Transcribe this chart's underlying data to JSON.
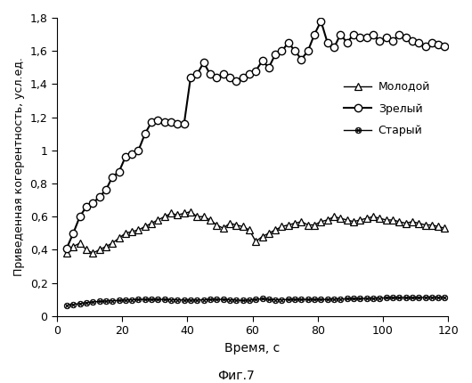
{
  "xlabel": "Время, с",
  "ylabel": "Приведенная когерентность, усл.ед.",
  "caption": "Фиг.7",
  "xlim": [
    0,
    120
  ],
  "ylim": [
    0,
    1.8
  ],
  "yticks": [
    0,
    0.2,
    0.4,
    0.6,
    0.8,
    1.0,
    1.2,
    1.4,
    1.6,
    1.8
  ],
  "xticks": [
    0,
    20,
    40,
    60,
    80,
    100,
    120
  ],
  "legend": [
    "Молодой",
    "Зрелый",
    "Старый"
  ],
  "molodoy_x": [
    3,
    5,
    7,
    9,
    11,
    13,
    15,
    17,
    19,
    21,
    23,
    25,
    27,
    29,
    31,
    33,
    35,
    37,
    39,
    41,
    43,
    45,
    47,
    49,
    51,
    53,
    55,
    57,
    59,
    61,
    63,
    65,
    67,
    69,
    71,
    73,
    75,
    77,
    79,
    81,
    83,
    85,
    87,
    89,
    91,
    93,
    95,
    97,
    99,
    101,
    103,
    105,
    107,
    109,
    111,
    113,
    115,
    117,
    119
  ],
  "molodoy_y": [
    0.38,
    0.42,
    0.44,
    0.4,
    0.38,
    0.4,
    0.42,
    0.44,
    0.47,
    0.5,
    0.51,
    0.52,
    0.54,
    0.56,
    0.58,
    0.6,
    0.62,
    0.61,
    0.62,
    0.63,
    0.6,
    0.6,
    0.58,
    0.55,
    0.53,
    0.56,
    0.55,
    0.54,
    0.52,
    0.45,
    0.48,
    0.5,
    0.52,
    0.54,
    0.55,
    0.56,
    0.57,
    0.55,
    0.55,
    0.57,
    0.58,
    0.6,
    0.59,
    0.58,
    0.57,
    0.58,
    0.59,
    0.6,
    0.59,
    0.58,
    0.58,
    0.57,
    0.56,
    0.57,
    0.56,
    0.55,
    0.55,
    0.54,
    0.53
  ],
  "zrelyy_x": [
    3,
    5,
    7,
    9,
    11,
    13,
    15,
    17,
    19,
    21,
    23,
    25,
    27,
    29,
    31,
    33,
    35,
    37,
    39,
    41,
    43,
    45,
    47,
    49,
    51,
    53,
    55,
    57,
    59,
    61,
    63,
    65,
    67,
    69,
    71,
    73,
    75,
    77,
    79,
    81,
    83,
    85,
    87,
    89,
    91,
    93,
    95,
    97,
    99,
    101,
    103,
    105,
    107,
    109,
    111,
    113,
    115,
    117,
    119
  ],
  "zrelyy_y": [
    0.41,
    0.5,
    0.6,
    0.66,
    0.68,
    0.72,
    0.76,
    0.84,
    0.87,
    0.96,
    0.98,
    1.0,
    1.1,
    1.17,
    1.18,
    1.17,
    1.17,
    1.16,
    1.16,
    1.44,
    1.46,
    1.53,
    1.46,
    1.44,
    1.46,
    1.44,
    1.42,
    1.44,
    1.46,
    1.48,
    1.54,
    1.5,
    1.58,
    1.6,
    1.65,
    1.6,
    1.55,
    1.6,
    1.7,
    1.78,
    1.65,
    1.62,
    1.7,
    1.65,
    1.7,
    1.68,
    1.68,
    1.7,
    1.66,
    1.68,
    1.66,
    1.7,
    1.68,
    1.66,
    1.65,
    1.63,
    1.65,
    1.64,
    1.63
  ],
  "staryy_x": [
    3,
    5,
    7,
    9,
    11,
    13,
    15,
    17,
    19,
    21,
    23,
    25,
    27,
    29,
    31,
    33,
    35,
    37,
    39,
    41,
    43,
    45,
    47,
    49,
    51,
    53,
    55,
    57,
    59,
    61,
    63,
    65,
    67,
    69,
    71,
    73,
    75,
    77,
    79,
    81,
    83,
    85,
    87,
    89,
    91,
    93,
    95,
    97,
    99,
    101,
    103,
    105,
    107,
    109,
    111,
    113,
    115,
    117,
    119
  ],
  "staryy_y": [
    0.065,
    0.07,
    0.075,
    0.08,
    0.085,
    0.088,
    0.09,
    0.092,
    0.094,
    0.096,
    0.098,
    0.1,
    0.1,
    0.1,
    0.1,
    0.1,
    0.098,
    0.098,
    0.096,
    0.096,
    0.096,
    0.098,
    0.1,
    0.1,
    0.1,
    0.098,
    0.096,
    0.094,
    0.096,
    0.1,
    0.104,
    0.1,
    0.098,
    0.098,
    0.1,
    0.1,
    0.1,
    0.1,
    0.1,
    0.1,
    0.1,
    0.102,
    0.102,
    0.104,
    0.104,
    0.104,
    0.106,
    0.106,
    0.108,
    0.11,
    0.11,
    0.11,
    0.11,
    0.11,
    0.11,
    0.112,
    0.112,
    0.112,
    0.112
  ],
  "background_color": "#ffffff"
}
